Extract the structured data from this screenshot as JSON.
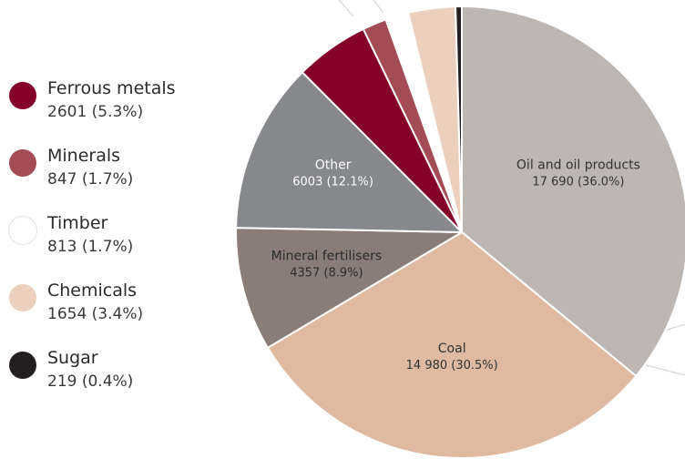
{
  "chart_data": {
    "type": "pie",
    "start_angle_deg": 0,
    "direction": "clockwise",
    "slices": [
      {
        "name": "Oil and oil products",
        "value": 17690,
        "value_label": "17 690 (36.0%)",
        "color": "#bcb7b2",
        "label_color": "#333333"
      },
      {
        "name": "Coal",
        "value": 14980,
        "value_label": "14 980 (30.5%)",
        "color": "#dfb9a0",
        "label_color": "#333333"
      },
      {
        "name": "Mineral fertilisers",
        "value": 4357,
        "value_label": "4357 (8.9%)",
        "color": "#8a7c76",
        "label_color": "#2b2b2b"
      },
      {
        "name": "Other",
        "value": 6003,
        "value_label": "6003 (12.1%)",
        "color": "#86888c",
        "label_color": "#ffffff"
      },
      {
        "name": "Ferrous metals",
        "value": 2601,
        "value_label": "2601 (5.3%)",
        "color": "#840029",
        "label_color": "#ffffff"
      },
      {
        "name": "Minerals",
        "value": 847,
        "value_label": "847 (1.7%)",
        "color": "#a44c55",
        "label_color": "#ffffff"
      },
      {
        "name": "Timber",
        "value": 813,
        "value_label": "813 (1.7%)",
        "color": "#ffffff",
        "label_color": "#333333"
      },
      {
        "name": "Chemicals",
        "value": 1654,
        "value_label": "1654 (3.4%)",
        "color": "#ebd0bd",
        "label_color": "#333333"
      },
      {
        "name": "Sugar",
        "value": 219,
        "value_label": "219 (0.4%)",
        "color": "#231f20",
        "label_color": "#ffffff"
      }
    ],
    "labeled_slices": [
      "Oil and oil products",
      "Coal",
      "Mineral fertilisers",
      "Other"
    ],
    "legend": {
      "placement": "left",
      "items": [
        {
          "name": "Ferrous metals",
          "value_label": "2601 (5.3%)",
          "color": "#840029"
        },
        {
          "name": "Minerals",
          "value_label": "847 (1.7%)",
          "color": "#a44c55"
        },
        {
          "name": "Timber",
          "value_label": "813 (1.7%)",
          "color": "#ffffff"
        },
        {
          "name": "Chemicals",
          "value_label": "1654 (3.4%)",
          "color": "#ebd0bd"
        },
        {
          "name": "Sugar",
          "value_label": "219 (0.4%)",
          "color": "#231f20"
        }
      ]
    }
  }
}
